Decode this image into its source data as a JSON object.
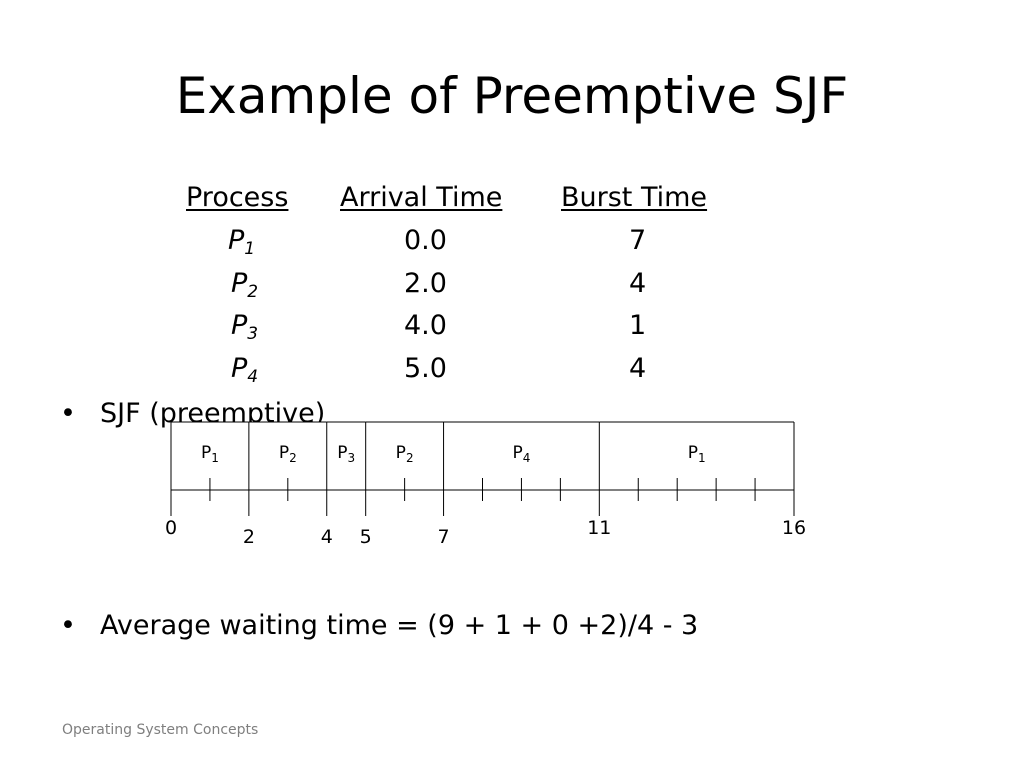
{
  "title": "Example of Preemptive SJF",
  "table": {
    "headers": {
      "process": "Process",
      "arrival": "Arrival Time",
      "burst": "Burst Time"
    },
    "rows": [
      {
        "base": "P",
        "sub": "1",
        "arrival": "0.0",
        "burst": "7"
      },
      {
        "base": "P",
        "sub": "2",
        "arrival": "2.0",
        "burst": "4"
      },
      {
        "base": "P",
        "sub": "3",
        "arrival": "4.0",
        "burst": "1"
      },
      {
        "base": "P",
        "sub": "4",
        "arrival": "5.0",
        "burst": "4"
      }
    ]
  },
  "bullets": {
    "sjf": "SJF (preemptive)",
    "avg": "Average waiting time = (9 + 1 + 0 +2)/4 - 3",
    "marker": "•"
  },
  "gantt": {
    "t_start": 0,
    "t_end": 16,
    "segments": [
      {
        "base": "P",
        "sub": "1",
        "start": 0,
        "end": 2
      },
      {
        "base": "P",
        "sub": "2",
        "start": 2,
        "end": 4
      },
      {
        "base": "P",
        "sub": "3",
        "start": 4,
        "end": 5
      },
      {
        "base": "P",
        "sub": "2",
        "start": 5,
        "end": 7
      },
      {
        "base": "P",
        "sub": "4",
        "start": 7,
        "end": 11
      },
      {
        "base": "P",
        "sub": "1",
        "start": 11,
        "end": 16
      }
    ],
    "labels": [
      {
        "text": "0",
        "t": 0,
        "row": "high"
      },
      {
        "text": "2",
        "t": 2,
        "row": "low"
      },
      {
        "text": "4",
        "t": 4,
        "row": "low"
      },
      {
        "text": "5",
        "t": 5,
        "row": "low"
      },
      {
        "text": "7",
        "t": 7,
        "row": "low"
      },
      {
        "text": "11",
        "t": 11,
        "row": "high"
      },
      {
        "text": "16",
        "t": 16,
        "row": "high"
      }
    ],
    "minor_ticks": [
      1,
      3,
      6,
      8,
      9,
      10,
      12,
      13,
      14,
      15
    ],
    "major_ticks": [
      0,
      2,
      4,
      5,
      7,
      11,
      16
    ]
  },
  "footer": "Operating System Concepts"
}
